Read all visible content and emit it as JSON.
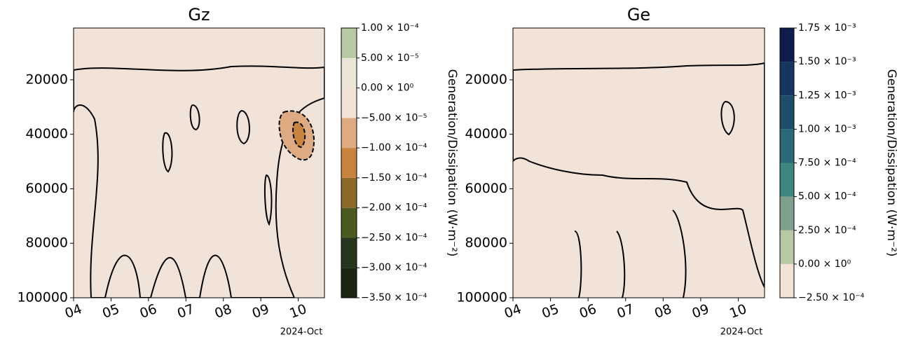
{
  "chart_data": [
    {
      "type": "contour",
      "title": "Gz",
      "x_note": "2024-Oct",
      "xlim": [
        4,
        10.7
      ],
      "xticks": [
        {
          "value": 4,
          "label": "04"
        },
        {
          "value": 5,
          "label": "05"
        },
        {
          "value": 6,
          "label": "06"
        },
        {
          "value": 7,
          "label": "07"
        },
        {
          "value": 8,
          "label": "08"
        },
        {
          "value": 9,
          "label": "09"
        },
        {
          "value": 10,
          "label": "10"
        }
      ],
      "ylim": [
        100000,
        1000
      ],
      "yticks": [
        20000,
        40000,
        60000,
        80000,
        100000
      ],
      "colorbar": {
        "label": "Generation/Dissipation (W·m⁻²)",
        "ticks": [
          {
            "value": -0.00035,
            "label": "−3.50 × 10⁻⁴"
          },
          {
            "value": -0.0003,
            "label": "−3.00 × 10⁻⁴"
          },
          {
            "value": -0.00025,
            "label": "−2.50 × 10⁻⁴"
          },
          {
            "value": -0.0002,
            "label": "−2.00 × 10⁻⁴"
          },
          {
            "value": -0.00015,
            "label": "−1.50 × 10⁻⁴"
          },
          {
            "value": -0.0001,
            "label": "−1.00 × 10⁻⁴"
          },
          {
            "value": -5e-05,
            "label": "−5.00 × 10⁻⁵"
          },
          {
            "value": 0,
            "label": "0.00 × 10⁰"
          },
          {
            "value": 5e-05,
            "label": "5.00 × 10⁻⁵"
          },
          {
            "value": 0.0001,
            "label": "1.00 × 10⁻⁴"
          }
        ],
        "colors": [
          "#1c2414",
          "#26351b",
          "#4b5a1e",
          "#8c6b2a",
          "#c8833e",
          "#ddaa82",
          "#f2e2d8",
          "#ece6d8",
          "#b8c8a2"
        ]
      }
    },
    {
      "type": "contour",
      "title": "Ge",
      "x_note": "2024-Oct",
      "xlim": [
        4,
        10.7
      ],
      "xticks": [
        {
          "value": 4,
          "label": "04"
        },
        {
          "value": 5,
          "label": "05"
        },
        {
          "value": 6,
          "label": "06"
        },
        {
          "value": 7,
          "label": "07"
        },
        {
          "value": 8,
          "label": "08"
        },
        {
          "value": 9,
          "label": "09"
        },
        {
          "value": 10,
          "label": "10"
        }
      ],
      "ylim": [
        100000,
        1000
      ],
      "yticks": [
        20000,
        40000,
        60000,
        80000,
        100000
      ],
      "colorbar": {
        "label": "Generation/Dissipation (W·m⁻²)",
        "ticks": [
          {
            "value": -0.00025,
            "label": "−2.50 × 10⁻⁴"
          },
          {
            "value": 0,
            "label": "0.00 × 10⁰"
          },
          {
            "value": 0.00025,
            "label": "2.50 × 10⁻⁴"
          },
          {
            "value": 0.0005,
            "label": "5.00 × 10⁻⁴"
          },
          {
            "value": 0.00075,
            "label": "7.50 × 10⁻⁴"
          },
          {
            "value": 0.001,
            "label": "1.00 × 10⁻³"
          },
          {
            "value": 0.00125,
            "label": "1.25 × 10⁻³"
          },
          {
            "value": 0.0015,
            "label": "1.50 × 10⁻³"
          },
          {
            "value": 0.00175,
            "label": "1.75 × 10⁻³"
          }
        ],
        "colors": [
          "#f2e2d8",
          "#b8c8a2",
          "#7ea08c",
          "#3e8680",
          "#2a6a78",
          "#1e4d6a",
          "#163660",
          "#0e1d4e"
        ]
      }
    }
  ]
}
